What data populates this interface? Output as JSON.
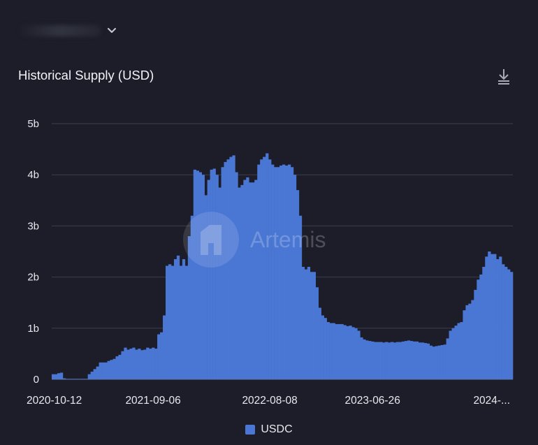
{
  "header": {
    "title": "Historical Supply (USD)"
  },
  "legend": {
    "label": "USDC"
  },
  "watermark": "Artemis",
  "colors": {
    "bar": "#4a77d4",
    "background": "#1c1d28",
    "grid": "#3c3e4c"
  },
  "icons": {
    "selector": "chevron-down-icon",
    "download": "download-icon",
    "watermark": "artemis-logo"
  },
  "chart_data": {
    "type": "bar",
    "title": "Historical Supply (USD)",
    "series": [
      {
        "name": "USDC"
      }
    ],
    "y_ticks": [
      "0",
      "1b",
      "2b",
      "3b",
      "4b",
      "5b"
    ],
    "ylim": [
      0,
      5
    ],
    "y_unit": "b",
    "x_tick_labels": [
      "2020-10-12",
      "2021-09-06",
      "2022-08-08",
      "2023-06-26",
      "2024-..."
    ],
    "x_tick_index": [
      0,
      36,
      78,
      115,
      146
    ],
    "grid": true,
    "legend_position": "bottom",
    "values": [
      0.1,
      0.1,
      0.12,
      0.13,
      0.02,
      0.01,
      0.01,
      0.01,
      0.01,
      0.01,
      0.01,
      0.01,
      0.01,
      0.1,
      0.15,
      0.2,
      0.25,
      0.33,
      0.33,
      0.33,
      0.36,
      0.38,
      0.4,
      0.45,
      0.48,
      0.55,
      0.62,
      0.58,
      0.6,
      0.62,
      0.58,
      0.6,
      0.57,
      0.58,
      0.62,
      0.6,
      0.62,
      0.6,
      0.88,
      0.92,
      1.25,
      2.22,
      2.25,
      2.22,
      2.35,
      2.42,
      2.22,
      2.35,
      2.22,
      2.8,
      3.2,
      4.1,
      4.08,
      4.05,
      4.0,
      3.6,
      3.9,
      4.1,
      4.12,
      4.0,
      3.75,
      4.15,
      4.25,
      4.3,
      4.35,
      4.38,
      4.05,
      3.75,
      3.8,
      3.9,
      3.95,
      3.85,
      3.85,
      3.9,
      4.2,
      4.3,
      4.35,
      4.42,
      4.3,
      4.2,
      4.15,
      4.15,
      4.18,
      4.2,
      4.18,
      4.2,
      4.15,
      4.0,
      3.7,
      3.2,
      2.2,
      2.15,
      2.2,
      2.1,
      2.1,
      1.8,
      1.4,
      1.25,
      1.2,
      1.12,
      1.1,
      1.1,
      1.08,
      1.08,
      1.08,
      1.06,
      1.04,
      1.05,
      1.02,
      1.0,
      0.95,
      0.82,
      0.78,
      0.76,
      0.75,
      0.74,
      0.73,
      0.73,
      0.73,
      0.72,
      0.73,
      0.72,
      0.73,
      0.72,
      0.73,
      0.73,
      0.74,
      0.75,
      0.76,
      0.75,
      0.74,
      0.74,
      0.72,
      0.72,
      0.71,
      0.7,
      0.66,
      0.64,
      0.65,
      0.66,
      0.67,
      0.68,
      0.8,
      0.95,
      1.0,
      1.05,
      1.1,
      1.12,
      1.35,
      1.45,
      1.48,
      1.55,
      1.75,
      1.95,
      2.05,
      2.2,
      2.4,
      2.5,
      2.45,
      2.45,
      2.35,
      2.4,
      2.25,
      2.2,
      2.15,
      2.1
    ]
  }
}
